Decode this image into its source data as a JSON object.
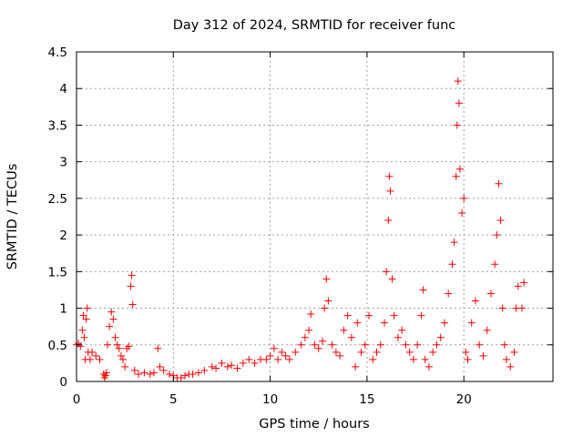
{
  "chart_data": {
    "type": "scatter",
    "title": "Day 312 of 2024, SRMTID for receiver func",
    "xlabel": "GPS time / hours",
    "ylabel": "SRMTID / TECUs",
    "xlim": [
      0,
      24.6
    ],
    "ylim": [
      0,
      4.5
    ],
    "xticks": [
      0,
      5,
      10,
      15,
      20
    ],
    "xtick_labels": [
      "0",
      "5",
      "10",
      "15",
      "20"
    ],
    "yticks": [
      0,
      0.5,
      1,
      1.5,
      2,
      2.5,
      3,
      3.5,
      4,
      4.5
    ],
    "ytick_labels": [
      "0",
      "0.5",
      "1",
      "1.5",
      "2",
      "2.5",
      "3",
      "3.5",
      "4",
      "4.5"
    ],
    "grid": true,
    "marker": "+",
    "color": "#ff0000",
    "series": [
      {
        "name": "SRMTID",
        "points": [
          [
            0.0,
            0.5
          ],
          [
            0.1,
            0.52
          ],
          [
            0.2,
            0.48
          ],
          [
            0.3,
            0.7
          ],
          [
            0.35,
            0.9
          ],
          [
            0.4,
            0.6
          ],
          [
            0.45,
            0.3
          ],
          [
            0.5,
            0.85
          ],
          [
            0.55,
            1.0
          ],
          [
            0.6,
            0.4
          ],
          [
            0.7,
            0.3
          ],
          [
            0.8,
            0.4
          ],
          [
            1.0,
            0.35
          ],
          [
            1.2,
            0.3
          ],
          [
            1.4,
            0.1
          ],
          [
            1.45,
            0.05
          ],
          [
            1.5,
            0.08
          ],
          [
            1.55,
            0.12
          ],
          [
            1.6,
            0.5
          ],
          [
            1.7,
            0.75
          ],
          [
            1.8,
            0.95
          ],
          [
            1.9,
            0.85
          ],
          [
            2.0,
            0.6
          ],
          [
            2.1,
            0.5
          ],
          [
            2.2,
            0.45
          ],
          [
            2.3,
            0.35
          ],
          [
            2.4,
            0.3
          ],
          [
            2.5,
            0.2
          ],
          [
            2.6,
            0.45
          ],
          [
            2.7,
            0.48
          ],
          [
            2.8,
            1.3
          ],
          [
            2.85,
            1.45
          ],
          [
            2.9,
            1.05
          ],
          [
            3.0,
            0.15
          ],
          [
            3.2,
            0.1
          ],
          [
            3.5,
            0.12
          ],
          [
            3.8,
            0.1
          ],
          [
            4.0,
            0.12
          ],
          [
            4.2,
            0.45
          ],
          [
            4.3,
            0.2
          ],
          [
            4.5,
            0.15
          ],
          [
            4.8,
            0.1
          ],
          [
            5.0,
            0.08
          ],
          [
            5.2,
            0.05
          ],
          [
            5.4,
            0.05
          ],
          [
            5.6,
            0.08
          ],
          [
            5.8,
            0.1
          ],
          [
            6.0,
            0.1
          ],
          [
            6.3,
            0.12
          ],
          [
            6.6,
            0.15
          ],
          [
            7.0,
            0.2
          ],
          [
            7.2,
            0.18
          ],
          [
            7.5,
            0.25
          ],
          [
            7.8,
            0.2
          ],
          [
            8.0,
            0.22
          ],
          [
            8.3,
            0.18
          ],
          [
            8.6,
            0.25
          ],
          [
            8.9,
            0.3
          ],
          [
            9.2,
            0.25
          ],
          [
            9.5,
            0.3
          ],
          [
            9.8,
            0.3
          ],
          [
            10.0,
            0.35
          ],
          [
            10.2,
            0.45
          ],
          [
            10.4,
            0.3
          ],
          [
            10.6,
            0.4
          ],
          [
            10.8,
            0.35
          ],
          [
            11.0,
            0.3
          ],
          [
            11.3,
            0.4
          ],
          [
            11.6,
            0.5
          ],
          [
            11.8,
            0.6
          ],
          [
            12.0,
            0.7
          ],
          [
            12.1,
            0.92
          ],
          [
            12.3,
            0.5
          ],
          [
            12.5,
            0.45
          ],
          [
            12.7,
            0.55
          ],
          [
            12.8,
            1.0
          ],
          [
            12.9,
            1.4
          ],
          [
            13.0,
            1.1
          ],
          [
            13.2,
            0.5
          ],
          [
            13.4,
            0.4
          ],
          [
            13.6,
            0.35
          ],
          [
            13.8,
            0.7
          ],
          [
            14.0,
            0.9
          ],
          [
            14.2,
            0.6
          ],
          [
            14.4,
            0.2
          ],
          [
            14.5,
            0.8
          ],
          [
            14.7,
            0.4
          ],
          [
            14.9,
            0.5
          ],
          [
            15.1,
            0.9
          ],
          [
            15.3,
            0.3
          ],
          [
            15.5,
            0.4
          ],
          [
            15.7,
            0.5
          ],
          [
            15.9,
            0.8
          ],
          [
            16.0,
            1.5
          ],
          [
            16.1,
            2.2
          ],
          [
            16.15,
            2.8
          ],
          [
            16.2,
            2.6
          ],
          [
            16.3,
            1.4
          ],
          [
            16.4,
            0.9
          ],
          [
            16.6,
            0.6
          ],
          [
            16.8,
            0.7
          ],
          [
            17.0,
            0.5
          ],
          [
            17.2,
            0.4
          ],
          [
            17.4,
            0.3
          ],
          [
            17.6,
            0.5
          ],
          [
            17.8,
            0.9
          ],
          [
            17.9,
            1.25
          ],
          [
            18.0,
            0.3
          ],
          [
            18.2,
            0.2
          ],
          [
            18.4,
            0.4
          ],
          [
            18.6,
            0.5
          ],
          [
            18.8,
            0.6
          ],
          [
            19.0,
            0.8
          ],
          [
            19.2,
            1.2
          ],
          [
            19.4,
            1.6
          ],
          [
            19.5,
            1.9
          ],
          [
            19.6,
            2.8
          ],
          [
            19.65,
            3.5
          ],
          [
            19.7,
            4.1
          ],
          [
            19.75,
            3.8
          ],
          [
            19.8,
            2.9
          ],
          [
            19.9,
            2.3
          ],
          [
            20.0,
            2.5
          ],
          [
            20.1,
            0.4
          ],
          [
            20.2,
            0.3
          ],
          [
            20.4,
            0.8
          ],
          [
            20.6,
            1.1
          ],
          [
            20.8,
            0.5
          ],
          [
            21.0,
            0.35
          ],
          [
            21.2,
            0.7
          ],
          [
            21.4,
            1.2
          ],
          [
            21.6,
            1.6
          ],
          [
            21.7,
            2.0
          ],
          [
            21.8,
            2.7
          ],
          [
            21.9,
            2.2
          ],
          [
            22.0,
            1.0
          ],
          [
            22.1,
            0.5
          ],
          [
            22.2,
            0.3
          ],
          [
            22.4,
            0.2
          ],
          [
            22.6,
            0.4
          ],
          [
            22.7,
            1.0
          ],
          [
            22.8,
            1.3
          ],
          [
            23.0,
            1.0
          ],
          [
            23.1,
            1.35
          ]
        ]
      }
    ]
  }
}
